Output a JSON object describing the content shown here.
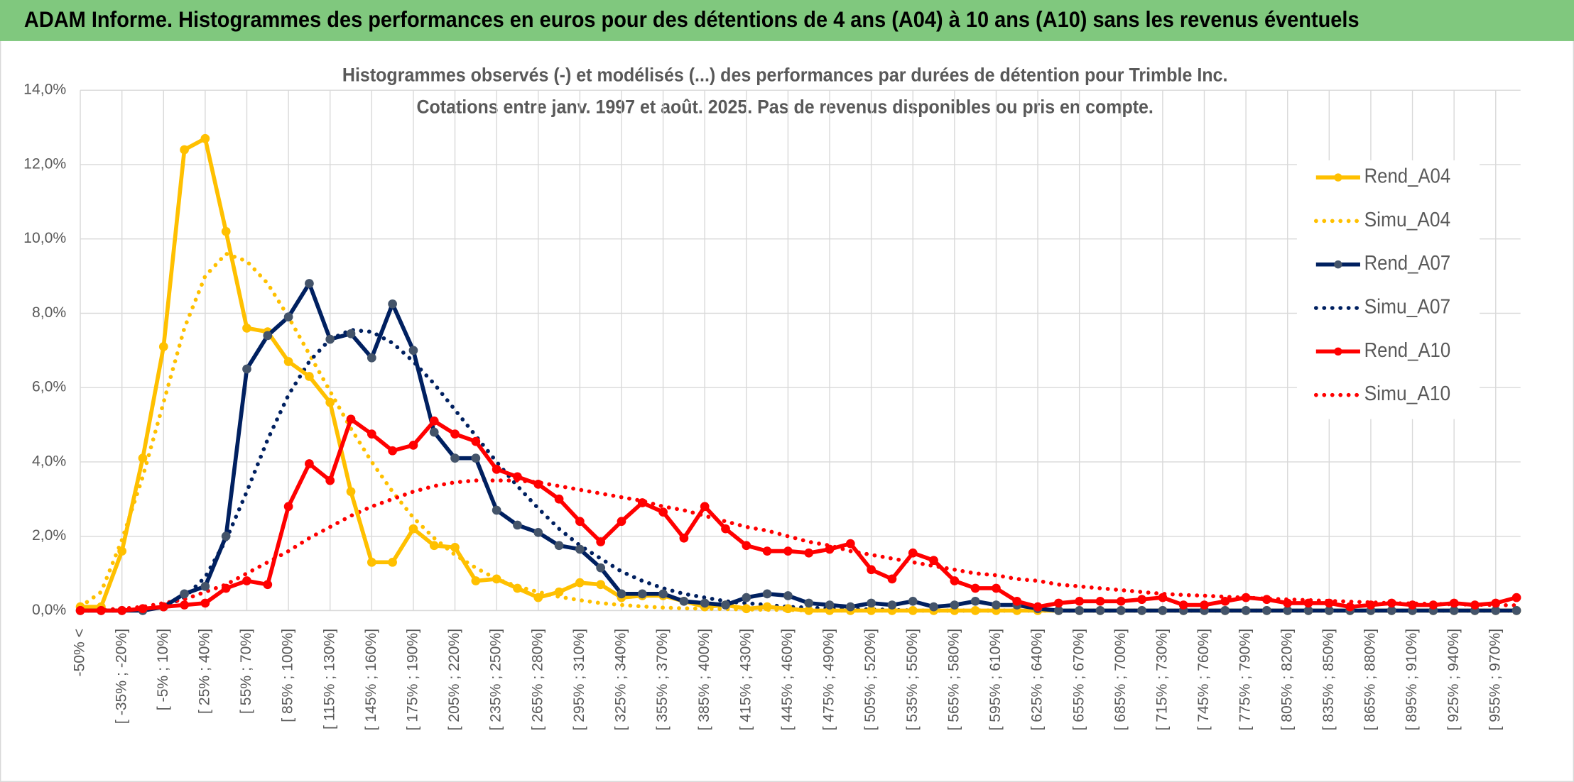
{
  "header": {
    "title": "ADAM Informe. Histogrammes des performances en euros pour des détentions de 4 ans (A04) à 10 ans (A10) sans les revenus éventuels"
  },
  "chart_data": {
    "type": "line",
    "title": "Histogrammes observés (-) et modélisés (...) des performances par durées de détention pour Trimble Inc.",
    "subtitle": "Cotations entre janv. 1997 et août. 2025. Pas de revenus disponibles ou pris en compte.",
    "categories": [
      "-50% <",
      null,
      "[ -35% ; -20%]",
      null,
      "[ -5% ; 10%]",
      null,
      "[ 25% ; 40%]",
      null,
      "[ 55% ; 70%]",
      null,
      "[ 85% ; 100%]",
      null,
      "[ 115% ; 130%]",
      null,
      "[ 145% ; 160%]",
      null,
      "[ 175% ; 190%]",
      null,
      "[ 205% ; 220%]",
      null,
      "[ 235% ; 250%]",
      null,
      "[ 265% ; 280%]",
      null,
      "[ 295% ; 310%]",
      null,
      "[ 325% ; 340%]",
      null,
      "[ 355% ; 370%]",
      null,
      "[ 385% ; 400%]",
      null,
      "[ 415% ; 430%]",
      null,
      "[ 445% ; 460%]",
      null,
      "[ 475% ; 490%]",
      null,
      "[ 505% ; 520%]",
      null,
      "[ 535% ; 550%]",
      null,
      "[ 565% ; 580%]",
      null,
      "[ 595% ; 610%]",
      null,
      "[ 625% ; 640%]",
      null,
      "[ 655% ; 670%]",
      null,
      "[ 685% ; 700%]",
      null,
      "[ 715% ; 730%]",
      null,
      "[ 745% ; 760%]",
      null,
      "[ 775% ; 790%]",
      null,
      "[ 805% ; 820%]",
      null,
      "[ 835% ; 850%]",
      null,
      "[ 865% ; 880%]",
      null,
      "[ 895% ; 910%]",
      null,
      "[ 925% ; 940%]",
      null,
      "[ 955% ; 970%]",
      null
    ],
    "series": [
      {
        "name": "Rend_A04",
        "color": "#ffc000",
        "style": "solid",
        "markers": true,
        "marker_color": "#ffc000",
        "values": [
          0.1,
          0.1,
          1.6,
          4.1,
          7.1,
          12.4,
          12.7,
          10.2,
          7.6,
          7.5,
          6.7,
          6.3,
          5.6,
          3.2,
          1.3,
          1.3,
          2.2,
          1.75,
          1.7,
          0.8,
          0.85,
          0.6,
          0.35,
          0.5,
          0.75,
          0.7,
          0.35,
          0.4,
          0.4,
          0.25,
          0.1,
          0.15,
          0.05,
          0.1,
          0.05,
          0,
          0,
          0,
          0,
          0,
          0,
          0,
          0,
          0,
          0,
          0,
          0,
          0,
          0,
          0,
          0,
          0,
          0,
          0,
          0,
          0,
          0,
          0,
          0,
          0,
          0,
          0,
          0,
          0,
          0,
          0,
          0,
          0,
          0,
          0
        ]
      },
      {
        "name": "Simu_A04",
        "color": "#ffc000",
        "style": "dotted",
        "markers": false,
        "values": [
          0.1,
          0.5,
          1.9,
          3.6,
          5.6,
          7.6,
          9.0,
          9.6,
          9.4,
          8.8,
          7.9,
          6.9,
          5.9,
          4.9,
          4.0,
          3.2,
          2.5,
          1.95,
          1.5,
          1.15,
          0.85,
          0.65,
          0.5,
          0.37,
          0.28,
          0.2,
          0.15,
          0.11,
          0.08,
          0.06,
          0.05,
          0.04,
          0.03,
          0.02,
          0.02,
          0,
          0,
          0,
          0,
          0,
          0,
          0,
          0,
          0,
          0,
          0,
          0,
          0,
          0,
          0,
          0,
          0,
          0,
          0,
          0,
          0,
          0,
          0,
          0,
          0,
          0,
          0,
          0,
          0,
          0,
          0,
          0,
          0,
          0,
          0
        ]
      },
      {
        "name": "Rend_A07",
        "color": "#002060",
        "style": "solid",
        "markers": true,
        "marker_color": "#44546a",
        "values": [
          0,
          0,
          0,
          0,
          0.1,
          0.45,
          0.65,
          2.0,
          6.5,
          7.4,
          7.9,
          8.8,
          7.3,
          7.45,
          6.8,
          8.25,
          7.0,
          4.8,
          4.1,
          4.1,
          2.7,
          2.3,
          2.1,
          1.75,
          1.65,
          1.15,
          0.45,
          0.45,
          0.45,
          0.25,
          0.2,
          0.15,
          0.35,
          0.45,
          0.4,
          0.2,
          0.15,
          0.1,
          0.2,
          0.15,
          0.25,
          0.1,
          0.15,
          0.25,
          0.15,
          0.15,
          0.05,
          0,
          0,
          0,
          0,
          0,
          0,
          0,
          0,
          0,
          0,
          0,
          0,
          0,
          0,
          0,
          0,
          0,
          0,
          0,
          0,
          0,
          0,
          0
        ]
      },
      {
        "name": "Simu_A07",
        "color": "#002060",
        "style": "dotted",
        "markers": false,
        "values": [
          0,
          0,
          0,
          0.03,
          0.1,
          0.35,
          0.9,
          1.9,
          3.2,
          4.6,
          5.8,
          6.7,
          7.3,
          7.55,
          7.5,
          7.2,
          6.7,
          6.1,
          5.4,
          4.7,
          4.0,
          3.35,
          2.75,
          2.2,
          1.75,
          1.4,
          1.05,
          0.8,
          0.6,
          0.45,
          0.35,
          0.25,
          0.2,
          0.15,
          0.1,
          0.08,
          0.06,
          0.04,
          0.03,
          0.02,
          0,
          0,
          0,
          0,
          0,
          0,
          0,
          0,
          0,
          0,
          0,
          0,
          0,
          0,
          0,
          0,
          0,
          0,
          0,
          0,
          0,
          0,
          0,
          0,
          0,
          0,
          0,
          0,
          0,
          0
        ]
      },
      {
        "name": "Rend_A10",
        "color": "#ff0000",
        "style": "solid",
        "markers": true,
        "marker_color": "#ff0000",
        "values": [
          0,
          0,
          0,
          0.05,
          0.1,
          0.15,
          0.2,
          0.6,
          0.8,
          0.7,
          2.8,
          3.95,
          3.5,
          5.15,
          4.75,
          4.3,
          4.45,
          5.1,
          4.75,
          4.55,
          3.8,
          3.6,
          3.4,
          3.0,
          2.4,
          1.85,
          2.4,
          2.9,
          2.65,
          1.95,
          2.8,
          2.2,
          1.75,
          1.6,
          1.6,
          1.55,
          1.65,
          1.8,
          1.1,
          0.85,
          1.55,
          1.35,
          0.8,
          0.6,
          0.6,
          0.25,
          0.1,
          0.2,
          0.25,
          0.25,
          0.25,
          0.3,
          0.35,
          0.15,
          0.15,
          0.25,
          0.35,
          0.3,
          0.2,
          0.2,
          0.2,
          0.1,
          0.15,
          0.2,
          0.15,
          0.15,
          0.2,
          0.15,
          0.2,
          0.35
        ]
      },
      {
        "name": "Simu_A10",
        "color": "#ff0000",
        "style": "dotted",
        "markers": false,
        "values": [
          0,
          0.02,
          0.05,
          0.1,
          0.2,
          0.3,
          0.5,
          0.7,
          1.0,
          1.3,
          1.6,
          1.95,
          2.25,
          2.55,
          2.8,
          3.0,
          3.2,
          3.35,
          3.45,
          3.5,
          3.5,
          3.5,
          3.45,
          3.35,
          3.25,
          3.15,
          3.05,
          2.95,
          2.8,
          2.7,
          2.55,
          2.4,
          2.25,
          2.15,
          2.0,
          1.85,
          1.75,
          1.6,
          1.5,
          1.4,
          1.3,
          1.2,
          1.1,
          1.0,
          0.95,
          0.85,
          0.8,
          0.7,
          0.65,
          0.6,
          0.55,
          0.5,
          0.45,
          0.42,
          0.4,
          0.37,
          0.35,
          0.32,
          0.3,
          0.28,
          0.26,
          0.24,
          0.22,
          0.2,
          0.19,
          0.18,
          0.17,
          0.16,
          0.15,
          0.14
        ]
      }
    ],
    "ylim": [
      0,
      14
    ],
    "yticks": [
      {
        "value": 0,
        "label": "0,0%"
      },
      {
        "value": 2,
        "label": "2,0%"
      },
      {
        "value": 4,
        "label": "4,0%"
      },
      {
        "value": 6,
        "label": "6,0%"
      },
      {
        "value": 8,
        "label": "8,0%"
      },
      {
        "value": 10,
        "label": "10,0%"
      },
      {
        "value": 12,
        "label": "12,0%"
      },
      {
        "value": 14,
        "label": "14,0%"
      }
    ],
    "grid": true,
    "legend": "right"
  }
}
